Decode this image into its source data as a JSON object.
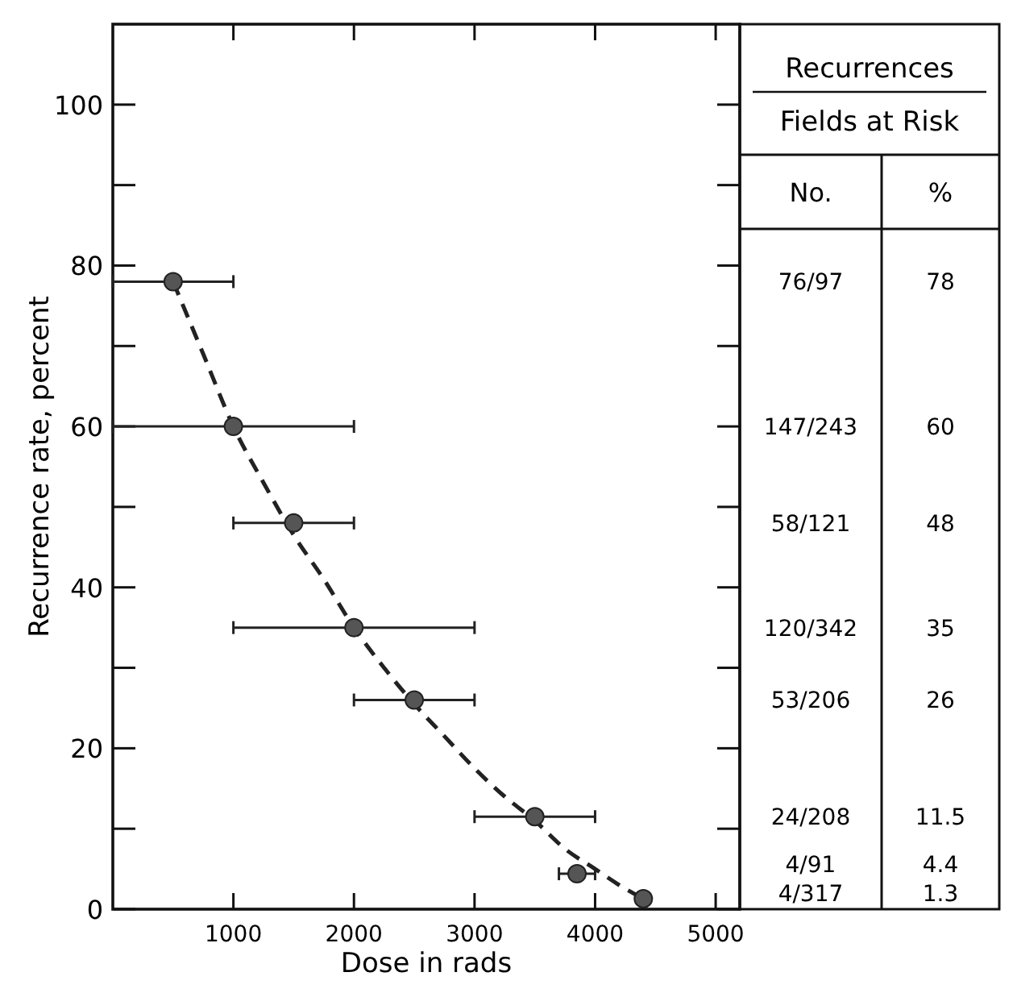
{
  "chart_data": [
    {
      "type": "scatter",
      "xlabel": "Dose in rads",
      "ylabel": "Recurrence rate, percent",
      "xlim": [
        0,
        5200
      ],
      "xticks": [
        1000,
        2000,
        3000,
        4000,
        5000
      ],
      "ylim": [
        0,
        110
      ],
      "yticks": [
        0,
        {
          "value": 10,
          "label": null
        },
        20,
        {
          "value": 30,
          "label": null
        },
        40,
        {
          "value": 50,
          "label": null
        },
        60,
        {
          "value": 70,
          "label": null
        },
        80,
        {
          "value": 90,
          "label": null
        },
        100
      ],
      "marker": "circle",
      "series": [
        {
          "color": "#555555",
          "x": [
            500,
            1000,
            1500,
            2000,
            2500,
            3500,
            3850,
            4400
          ],
          "values": [
            78,
            60,
            48,
            35,
            26,
            11.5,
            4.4,
            1.3
          ],
          "xerrors": [
            [
              0,
              1000
            ],
            [
              0,
              2000
            ],
            [
              1000,
              2000
            ],
            [
              1000,
              3000
            ],
            [
              2000,
              3000
            ],
            [
              3000,
              4000
            ],
            [
              3700,
              4000
            ],
            null
          ]
        },
        {
          "type": "line",
          "color": "#222222",
          "line_style": "dashed",
          "marker": "none",
          "x": [
            500,
            750,
            1000,
            1250,
            1500,
            1750,
            2000,
            2250,
            2500,
            2750,
            3000,
            3250,
            3500,
            3750,
            4000,
            4200,
            4400
          ],
          "values": [
            78,
            69,
            60,
            53,
            46.5,
            41,
            35,
            30,
            25.5,
            21.5,
            17.5,
            14,
            11,
            7.5,
            5,
            3,
            1.3
          ]
        }
      ]
    },
    {
      "type": "other",
      "annotations": [
        "Recurrences",
        "Fields at Risk",
        "No.",
        "%",
        "76/97",
        "78",
        "147/243",
        "60",
        "58/121",
        "48",
        "120/342",
        "35",
        "53/206",
        "26",
        "24/208",
        "11.5",
        "4/91",
        "4.4",
        "4/317",
        "1.3"
      ]
    }
  ]
}
